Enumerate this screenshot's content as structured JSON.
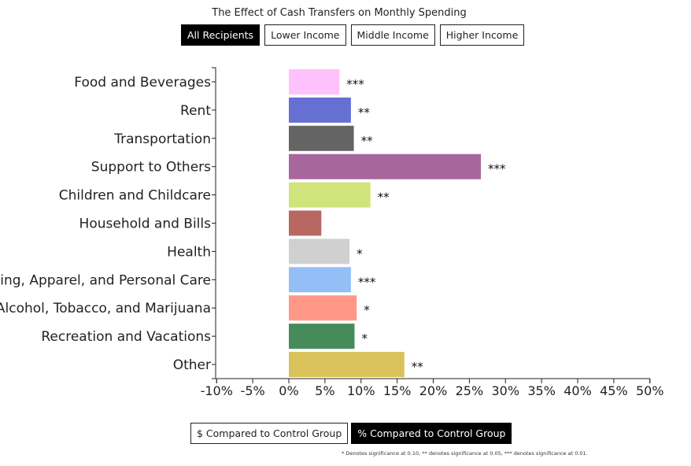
{
  "chart_data": {
    "type": "bar",
    "orientation": "horizontal",
    "title": "The Effect of Cash Transfers on Monthly Spending",
    "categories": [
      "Food and Beverages",
      "Rent",
      "Transportation",
      "Support to Others",
      "Children and Childcare",
      "Household and Bills",
      "Health",
      "Clothing, Apparel, and Personal Care",
      "Alcohol, Tobacco, and Marijuana",
      "Recreation and Vacations",
      "Other"
    ],
    "values": [
      7.0,
      8.6,
      9.0,
      26.6,
      11.3,
      4.5,
      8.4,
      8.6,
      9.4,
      9.1,
      16.0
    ],
    "significance": [
      "***",
      "**",
      "**",
      "***",
      "**",
      "",
      "*",
      "***",
      "*",
      "*",
      "**"
    ],
    "colors": [
      "#ffc1fb",
      "#6670d2",
      "#646464",
      "#a8669f",
      "#d1e47b",
      "#b86860",
      "#d0d0d0",
      "#93bff6",
      "#ff9886",
      "#468c5b",
      "#d9c25a"
    ],
    "xlim": [
      -10,
      50
    ],
    "xticks": [
      -10,
      -5,
      0,
      5,
      10,
      15,
      20,
      25,
      30,
      35,
      40,
      45,
      50
    ],
    "xtick_labels": [
      "-10%",
      "-5%",
      "0%",
      "5%",
      "10%",
      "15%",
      "20%",
      "25%",
      "30%",
      "35%",
      "40%",
      "45%",
      "50%"
    ],
    "xlabel": "",
    "ylabel": "",
    "grid": false
  },
  "controls": {
    "groups": [
      "All Recipients",
      "Lower Income",
      "Middle Income",
      "Higher Income"
    ],
    "active_group": 0,
    "modes": [
      "$ Compared to Control Group",
      "% Compared to Control Group"
    ],
    "active_mode": 1
  },
  "footnote": "* Denotes significance at 0.10, ** denotes significance at 0.05, *** denotes significance at 0.01."
}
